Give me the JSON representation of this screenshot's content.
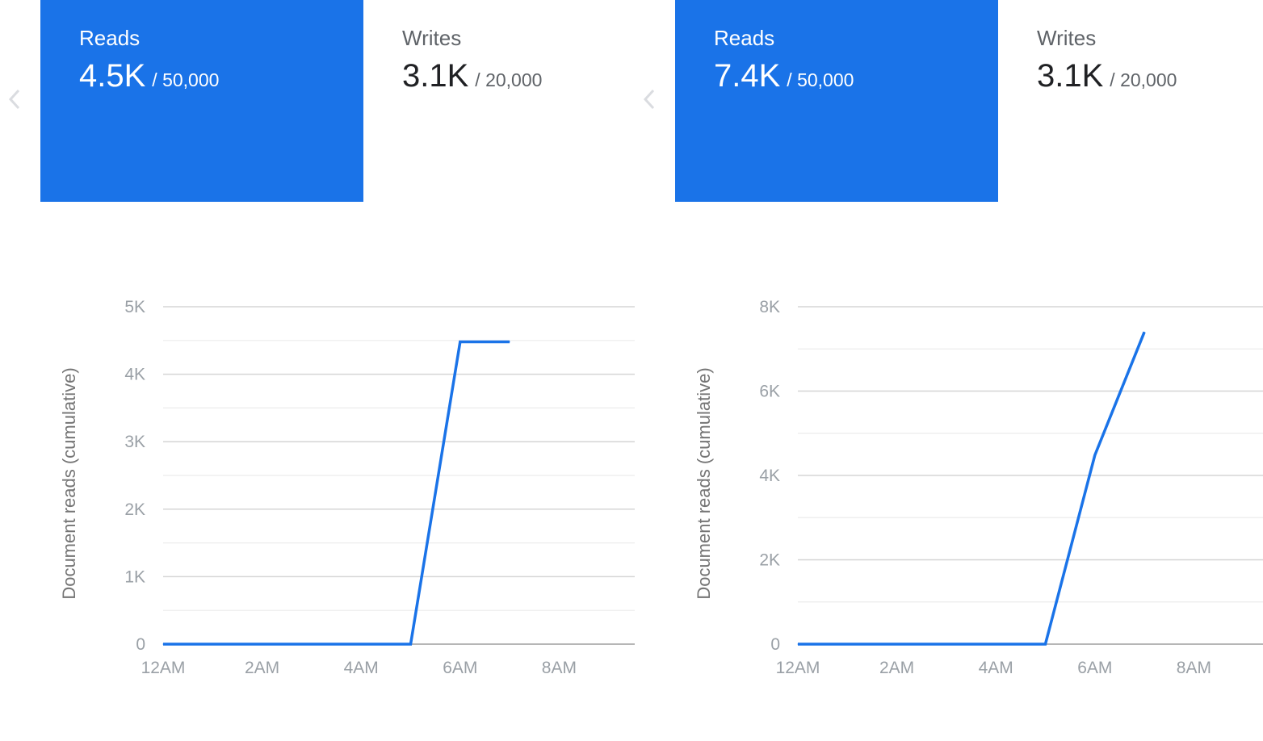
{
  "panels": [
    {
      "metrics": [
        {
          "label": "Reads",
          "value": "4.5K",
          "limit": "/ 50,000",
          "active": true
        },
        {
          "label": "Writes",
          "value": "3.1K",
          "limit": "/ 20,000",
          "active": false
        }
      ],
      "chart_data": {
        "type": "line",
        "ylabel": "Document reads (cumulative)",
        "xlabel": "",
        "ylim": [
          0,
          5000
        ],
        "yticks": [
          0,
          1000,
          2000,
          3000,
          4000,
          5000
        ],
        "ytick_labels": [
          "0",
          "1K",
          "2K",
          "3K",
          "4K",
          "5K"
        ],
        "xticks": [
          0,
          2,
          4,
          6,
          8
        ],
        "xtick_labels": [
          "12AM",
          "2AM",
          "4AM",
          "6AM",
          "8AM"
        ],
        "xlim": [
          0,
          9.6
        ],
        "grid": true,
        "series": [
          {
            "color": "#1a73e8",
            "x": [
              0,
              5,
              6,
              7
            ],
            "y": [
              0,
              0,
              4480,
              4480
            ]
          }
        ]
      }
    },
    {
      "metrics": [
        {
          "label": "Reads",
          "value": "7.4K",
          "limit": "/ 50,000",
          "active": true
        },
        {
          "label": "Writes",
          "value": "3.1K",
          "limit": "/ 20,000",
          "active": false
        }
      ],
      "chart_data": {
        "type": "line",
        "ylabel": "Document reads (cumulative)",
        "xlabel": "",
        "ylim": [
          0,
          8000
        ],
        "yticks": [
          0,
          2000,
          4000,
          6000,
          8000
        ],
        "ytick_labels": [
          "0",
          "2K",
          "4K",
          "6K",
          "8K"
        ],
        "xticks": [
          0,
          2,
          4,
          6,
          8
        ],
        "xtick_labels": [
          "12AM",
          "2AM",
          "4AM",
          "6AM",
          "8AM"
        ],
        "xlim": [
          0,
          9.6
        ],
        "grid": true,
        "series": [
          {
            "color": "#1a73e8",
            "x": [
              0,
              5,
              6,
              7
            ],
            "y": [
              0,
              0,
              4480,
              7400
            ]
          }
        ]
      }
    }
  ],
  "icons": {
    "prev": "chevron-left-icon"
  },
  "colors": {
    "accent": "#1a73e8",
    "grid": "#e0e0e0",
    "tick": "#9aa0a6"
  }
}
